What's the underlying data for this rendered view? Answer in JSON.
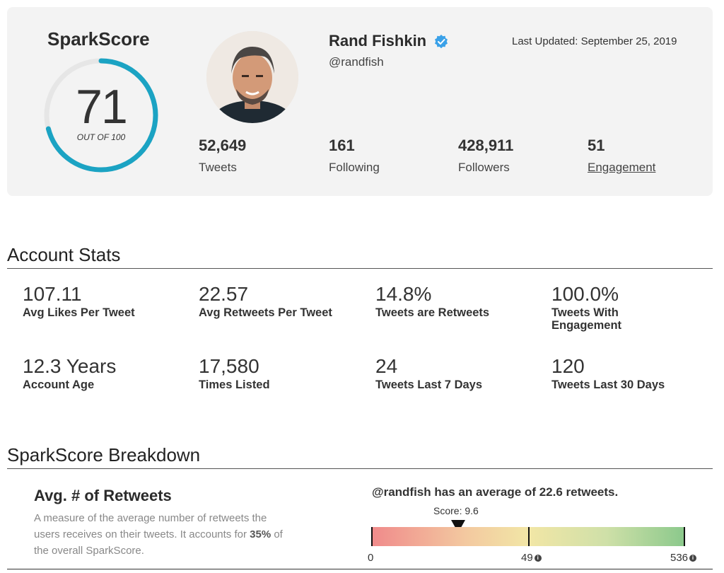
{
  "profile_card": {
    "sparkscore_title": "SparkScore",
    "score": "71",
    "score_sub": "OUT OF 100",
    "score_value": 71,
    "score_max": 100,
    "name": "Rand Fishkin",
    "handle": "@randfish",
    "last_updated": "Last Updated: September 25, 2019",
    "accent_color": "#1ba3c3",
    "verified_color": "#3aa1e8",
    "stats": [
      {
        "value": "52,649",
        "label": "Tweets"
      },
      {
        "value": "161",
        "label": "Following"
      },
      {
        "value": "428,911",
        "label": "Followers"
      },
      {
        "value": "51",
        "label": "Engagement"
      }
    ]
  },
  "account_stats": {
    "heading": "Account Stats",
    "items": [
      {
        "value": "107.11",
        "label": "Avg Likes Per Tweet"
      },
      {
        "value": "22.57",
        "label": "Avg Retweets Per Tweet"
      },
      {
        "value": "14.8%",
        "label": "Tweets are Retweets"
      },
      {
        "value": "100.0%",
        "label": "Tweets With Engagement"
      },
      {
        "value": "12.3 Years",
        "label": "Account Age"
      },
      {
        "value": "17,580",
        "label": "Times Listed"
      },
      {
        "value": "24",
        "label": "Tweets Last 7 Days"
      },
      {
        "value": "120",
        "label": "Tweets Last 30 Days"
      }
    ]
  },
  "breakdown": {
    "heading": "SparkScore Breakdown",
    "metric_title": "Avg. # of Retweets",
    "desc_before": "A measure of the average number of retweets the users receives on their tweets. It accounts for ",
    "desc_bold": "35%",
    "desc_after": " of the overall SparkScore.",
    "avg_line": "@randfish has an average of 22.6 retweets.",
    "score_label": "Score: 9.6",
    "axis_min": "0",
    "axis_mid": "49",
    "axis_max": "536"
  }
}
